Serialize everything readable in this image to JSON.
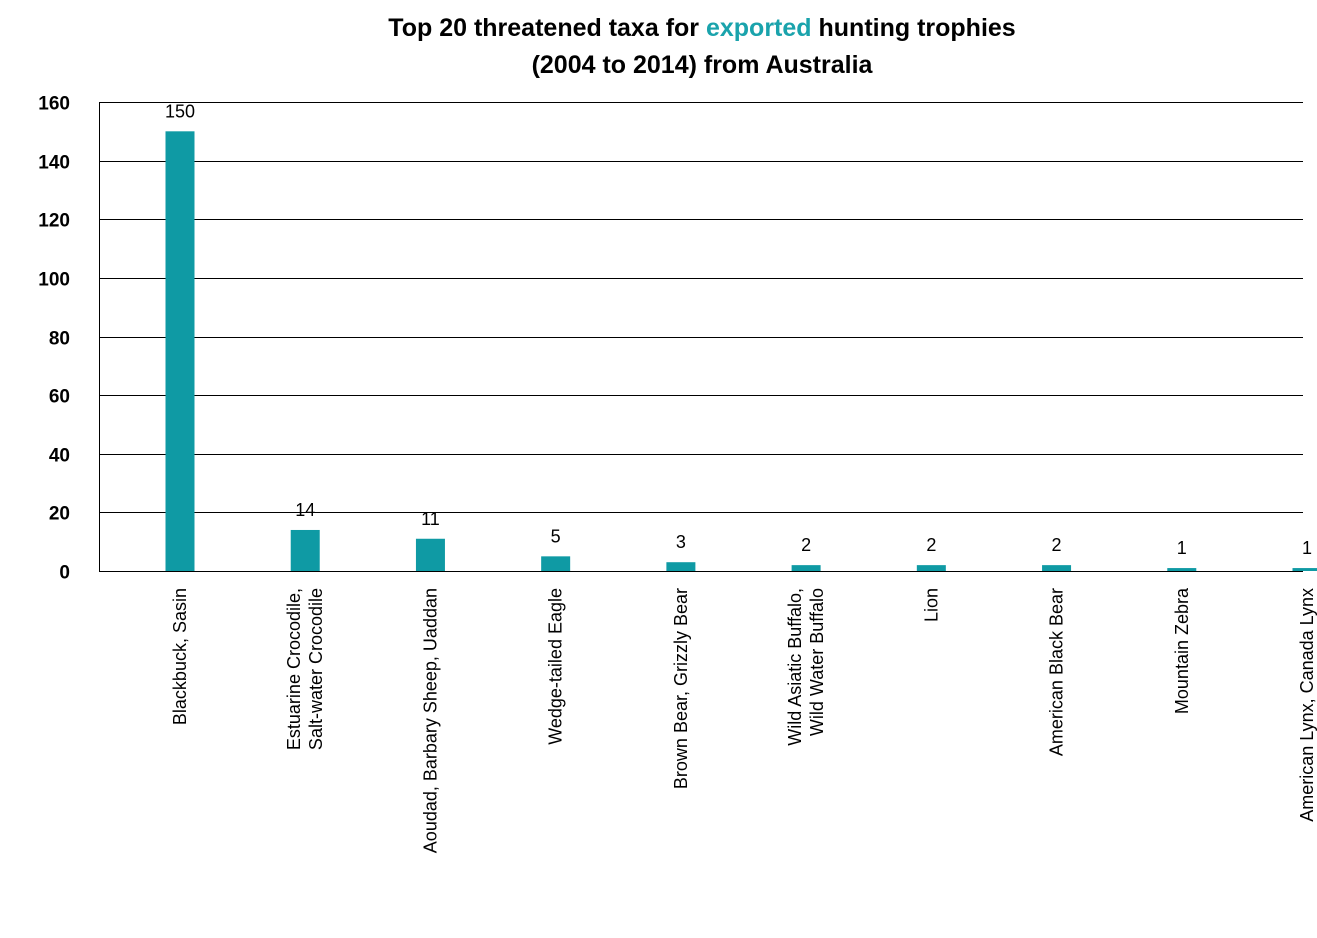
{
  "title": {
    "line1_before": "Top 20 threatened taxa for ",
    "line1_highlight": "exported",
    "line1_after": " hunting trophies",
    "line2": "(2004 to 2014) from Australia"
  },
  "colors": {
    "bar": "#0f9aa4",
    "highlight": "#1aa3ac",
    "grid": "#000000",
    "text": "#000000"
  },
  "chart_data": {
    "type": "bar",
    "title": "Top 20 threatened taxa for exported hunting trophies (2004 to 2014) from Australia",
    "xlabel": "",
    "ylabel": "",
    "ylim": [
      0,
      160
    ],
    "yticks": [
      "0",
      "20",
      "40",
      "60",
      "80",
      "100",
      "120",
      "140",
      "160"
    ],
    "grid": true,
    "legend": "none",
    "categories": [
      [
        "Blackbuck,  Sasin"
      ],
      [
        "Estuarine Crocodile,",
        "Salt-water Crocodile"
      ],
      [
        "Aoudad, Barbary Sheep, Uaddan"
      ],
      [
        "Wedge-tailed Eagle"
      ],
      [
        "Brown Bear, Grizzly Bear"
      ],
      [
        "Wild Asiatic Buffalo,",
        "Wild Water Buffalo"
      ],
      [
        "Lion"
      ],
      [
        "American Black Bear"
      ],
      [
        "Mountain Zebra"
      ],
      [
        "American Lynx, Canada Lynx"
      ]
    ],
    "values": [
      150,
      14,
      11,
      5,
      3,
      2,
      2,
      2,
      1,
      1
    ],
    "data_labels": [
      "150",
      "14",
      "11",
      "5",
      "3",
      "2",
      "2",
      "2",
      "1",
      "1"
    ]
  }
}
